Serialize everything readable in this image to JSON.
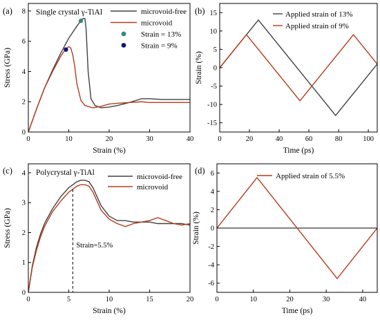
{
  "colors": {
    "gray": "#404040",
    "red": "#b83a1b",
    "teal": "#2e8b7f",
    "navy": "#14147a",
    "zero": "#000000"
  },
  "chart_data": [
    {
      "id": "a",
      "type": "line",
      "panel_label": "(a)",
      "title": "Single crystal γ-TiAl",
      "xlabel": "Strain (%)",
      "ylabel": "Stress (GPa)",
      "xlim": [
        0,
        40
      ],
      "ylim": [
        0,
        8.5
      ],
      "xticks": [
        0,
        10,
        20,
        30,
        40
      ],
      "yticks": [
        0,
        2,
        4,
        6,
        8
      ],
      "legend_position": "top-right",
      "series": [
        {
          "name": "microvoid-free",
          "color": "#404040",
          "x": [
            0,
            2,
            4,
            6,
            8,
            10,
            12,
            13,
            13.5,
            14,
            14.3,
            14.8,
            15.5,
            16.5,
            18,
            20,
            22,
            25,
            28,
            30,
            33,
            36,
            40
          ],
          "y": [
            0,
            1.5,
            2.9,
            4.1,
            5.2,
            6.2,
            7.0,
            7.35,
            7.5,
            7.5,
            6.8,
            4.0,
            2.2,
            1.75,
            1.6,
            1.65,
            1.75,
            1.95,
            2.2,
            2.2,
            2.15,
            2.15,
            2.15
          ]
        },
        {
          "name": "microvoid",
          "color": "#b83a1b",
          "x": [
            0,
            2,
            4,
            6,
            8,
            9,
            10,
            10.5,
            11,
            11.5,
            12,
            13,
            14,
            16,
            18,
            20,
            22,
            25,
            28,
            30,
            33,
            36,
            40
          ],
          "y": [
            0,
            1.5,
            2.9,
            4.0,
            5.0,
            5.4,
            5.65,
            5.55,
            5.1,
            4.3,
            3.2,
            2.1,
            1.75,
            1.6,
            1.7,
            1.85,
            1.9,
            1.95,
            2.0,
            1.95,
            1.95,
            1.95,
            1.95
          ]
        }
      ],
      "markers": [
        {
          "name": "Strain = 13%",
          "x": 13,
          "y": 7.35,
          "color": "#2e8b7f"
        },
        {
          "name": "Strain = 9%",
          "x": 9.3,
          "y": 5.45,
          "color": "#14147a"
        }
      ]
    },
    {
      "id": "b",
      "type": "line",
      "panel_label": "(b)",
      "xlabel": "Time (ps)",
      "ylabel": "Strain (%)",
      "xlim": [
        0,
        106
      ],
      "ylim": [
        -17.5,
        17.5
      ],
      "xticks": [
        0,
        20,
        40,
        60,
        80,
        100
      ],
      "yticks": [
        -15,
        -10,
        -5,
        0,
        5,
        10,
        15
      ],
      "legend_position": "top-right",
      "series": [
        {
          "name": "Applied strain of 13%",
          "color": "#404040",
          "x": [
            0,
            26,
            78,
            106
          ],
          "y": [
            0,
            13,
            -13,
            1
          ]
        },
        {
          "name": "Applied strain of 9%",
          "color": "#b83a1b",
          "x": [
            0,
            18,
            54,
            90,
            106
          ],
          "y": [
            0,
            9,
            -9,
            9,
            1
          ]
        }
      ]
    },
    {
      "id": "c",
      "type": "line",
      "panel_label": "(c)",
      "title": "Polycrystal γ-TiAl",
      "xlabel": "Strain (%)",
      "ylabel": "Stress (GPa)",
      "xlim": [
        0,
        20
      ],
      "ylim": [
        0,
        4.3
      ],
      "xticks": [
        0,
        5,
        10,
        15,
        20
      ],
      "yticks": [
        0,
        1,
        2,
        3,
        4
      ],
      "legend_position": "top-right",
      "series": [
        {
          "name": "microvoid-free",
          "color": "#404040",
          "x": [
            0,
            0.5,
            1,
            1.5,
            2,
            3,
            4,
            5,
            5.5,
            6,
            6.5,
            7,
            7.5,
            8,
            8.5,
            9,
            10,
            11,
            12,
            13,
            14,
            15,
            16,
            17,
            18,
            19,
            20
          ],
          "y": [
            0,
            0.9,
            1.5,
            1.95,
            2.3,
            2.8,
            3.2,
            3.5,
            3.6,
            3.7,
            3.75,
            3.75,
            3.7,
            3.5,
            3.2,
            2.9,
            2.55,
            2.4,
            2.4,
            2.35,
            2.35,
            2.35,
            2.3,
            2.3,
            2.3,
            2.3,
            2.25
          ]
        },
        {
          "name": "microvoid",
          "color": "#b83a1b",
          "x": [
            0,
            0.5,
            1,
            1.5,
            2,
            3,
            4,
            5,
            5.5,
            6,
            6.5,
            7,
            7.5,
            8,
            8.5,
            9,
            10,
            11,
            12,
            13,
            14,
            15,
            16,
            17,
            18,
            19,
            20
          ],
          "y": [
            0,
            0.85,
            1.4,
            1.85,
            2.2,
            2.7,
            3.05,
            3.35,
            3.45,
            3.55,
            3.6,
            3.6,
            3.55,
            3.35,
            3.05,
            2.75,
            2.45,
            2.3,
            2.2,
            2.3,
            2.35,
            2.4,
            2.5,
            2.4,
            2.3,
            2.25,
            2.3
          ]
        }
      ],
      "annotation": {
        "text": "Strain=5.5%",
        "x": 5.5,
        "y": 3.45
      }
    },
    {
      "id": "d",
      "type": "line",
      "panel_label": "(d)",
      "xlabel": "Time (ps)",
      "ylabel": "Strain (%)",
      "xlim": [
        0,
        44
      ],
      "ylim": [
        -7,
        7
      ],
      "xticks": [
        0,
        10,
        20,
        30,
        40
      ],
      "yticks": [
        -6,
        -4,
        -2,
        0,
        2,
        4,
        6
      ],
      "legend_position": "top-right",
      "zero_line": true,
      "series": [
        {
          "name": "Applied strain of 5.5%",
          "color": "#b83a1b",
          "x": [
            0,
            11,
            33,
            44
          ],
          "y": [
            0,
            5.5,
            -5.5,
            0
          ]
        }
      ]
    }
  ]
}
